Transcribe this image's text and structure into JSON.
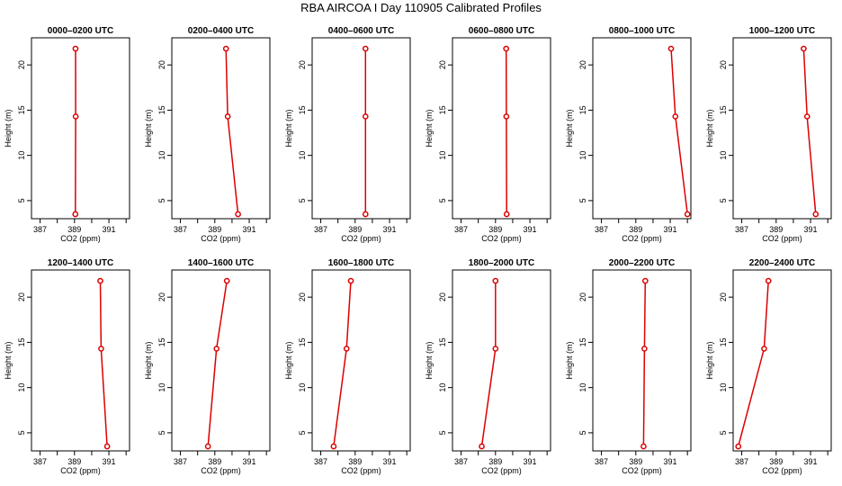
{
  "title": "RBA AIRCOA I  Day 110905  Calibrated Profiles",
  "chart_data": [
    {
      "type": "line",
      "title": "0000–0200 UTC",
      "xlabel": "CO2 (ppm)",
      "ylabel": "Height (m)",
      "xlim": [
        386.5,
        392.2
      ],
      "ylim": [
        3,
        23
      ],
      "xticks": [
        387,
        388,
        389,
        390,
        391,
        392
      ],
      "xtick_labels": [
        "387",
        "",
        "389",
        "",
        "391",
        ""
      ],
      "yticks": [
        5,
        10,
        15,
        20
      ],
      "yticklabels": [
        "5",
        "10",
        "15",
        "20"
      ],
      "series": [
        {
          "x": [
            389.05,
            389.07,
            389.06
          ],
          "y": [
            3.5,
            14.3,
            21.8
          ]
        }
      ]
    },
    {
      "type": "line",
      "title": "0200–0400 UTC",
      "xlabel": "CO2 (ppm)",
      "ylabel": "Height (m)",
      "xlim": [
        386.5,
        392.2
      ],
      "ylim": [
        3,
        23
      ],
      "xticks": [
        387,
        388,
        389,
        390,
        391,
        392
      ],
      "xtick_labels": [
        "387",
        "",
        "389",
        "",
        "391",
        ""
      ],
      "yticks": [
        5,
        10,
        15,
        20
      ],
      "yticklabels": [
        "5",
        "10",
        "15",
        "20"
      ],
      "series": [
        {
          "x": [
            390.35,
            389.75,
            389.65
          ],
          "y": [
            3.5,
            14.3,
            21.8
          ]
        }
      ]
    },
    {
      "type": "line",
      "title": "0400–0600 UTC",
      "xlabel": "CO2 (ppm)",
      "ylabel": "Height (m)",
      "xlim": [
        386.5,
        392.2
      ],
      "ylim": [
        3,
        23
      ],
      "xticks": [
        387,
        388,
        389,
        390,
        391,
        392
      ],
      "xtick_labels": [
        "387",
        "",
        "389",
        "",
        "391",
        ""
      ],
      "yticks": [
        5,
        10,
        15,
        20
      ],
      "yticklabels": [
        "5",
        "10",
        "15",
        "20"
      ],
      "series": [
        {
          "x": [
            389.6,
            389.6,
            389.6
          ],
          "y": [
            3.5,
            14.3,
            21.8
          ]
        }
      ]
    },
    {
      "type": "line",
      "title": "0600–0800 UTC",
      "xlabel": "CO2 (ppm)",
      "ylabel": "Height (m)",
      "xlim": [
        386.5,
        392.2
      ],
      "ylim": [
        3,
        23
      ],
      "xticks": [
        387,
        388,
        389,
        390,
        391,
        392
      ],
      "xtick_labels": [
        "387",
        "",
        "389",
        "",
        "391",
        ""
      ],
      "yticks": [
        5,
        10,
        15,
        20
      ],
      "yticklabels": [
        "5",
        "10",
        "15",
        "20"
      ],
      "series": [
        {
          "x": [
            389.65,
            389.63,
            389.62
          ],
          "y": [
            3.5,
            14.3,
            21.8
          ]
        }
      ]
    },
    {
      "type": "line",
      "title": "0800–1000 UTC",
      "xlabel": "CO2 (ppm)",
      "ylabel": "Height (m)",
      "xlim": [
        386.5,
        392.2
      ],
      "ylim": [
        3,
        23
      ],
      "xticks": [
        387,
        388,
        389,
        390,
        391,
        392
      ],
      "xtick_labels": [
        "387",
        "",
        "389",
        "",
        "391",
        ""
      ],
      "yticks": [
        5,
        10,
        15,
        20
      ],
      "yticklabels": [
        "5",
        "10",
        "15",
        "20"
      ],
      "series": [
        {
          "x": [
            392.0,
            391.3,
            391.05
          ],
          "y": [
            3.5,
            14.3,
            21.8
          ]
        }
      ]
    },
    {
      "type": "line",
      "title": "1000–1200 UTC",
      "xlabel": "CO2 (ppm)",
      "ylabel": "Height (m)",
      "xlim": [
        386.5,
        392.2
      ],
      "ylim": [
        3,
        23
      ],
      "xticks": [
        387,
        388,
        389,
        390,
        391,
        392
      ],
      "xtick_labels": [
        "387",
        "",
        "389",
        "",
        "391",
        ""
      ],
      "yticks": [
        5,
        10,
        15,
        20
      ],
      "yticklabels": [
        "5",
        "10",
        "15",
        "20"
      ],
      "series": [
        {
          "x": [
            391.3,
            390.8,
            390.6
          ],
          "y": [
            3.5,
            14.3,
            21.8
          ]
        }
      ]
    },
    {
      "type": "line",
      "title": "1200–1400 UTC",
      "xlabel": "CO2 (ppm)",
      "ylabel": "Height (m)",
      "xlim": [
        386.5,
        392.2
      ],
      "ylim": [
        3,
        23
      ],
      "xticks": [
        387,
        388,
        389,
        390,
        391,
        392
      ],
      "xtick_labels": [
        "387",
        "",
        "389",
        "",
        "391",
        ""
      ],
      "yticks": [
        5,
        10,
        15,
        20
      ],
      "yticklabels": [
        "5",
        "10",
        "15",
        "20"
      ],
      "series": [
        {
          "x": [
            390.9,
            390.55,
            390.5
          ],
          "y": [
            3.5,
            14.3,
            21.8
          ]
        }
      ]
    },
    {
      "type": "line",
      "title": "1400–1600 UTC",
      "xlabel": "CO2 (ppm)",
      "ylabel": "Height (m)",
      "xlim": [
        386.5,
        392.2
      ],
      "ylim": [
        3,
        23
      ],
      "xticks": [
        387,
        388,
        389,
        390,
        391,
        392
      ],
      "xtick_labels": [
        "387",
        "",
        "389",
        "",
        "391",
        ""
      ],
      "yticks": [
        5,
        10,
        15,
        20
      ],
      "yticklabels": [
        "5",
        "10",
        "15",
        "20"
      ],
      "series": [
        {
          "x": [
            388.6,
            389.1,
            389.7
          ],
          "y": [
            3.5,
            14.3,
            21.8
          ]
        }
      ]
    },
    {
      "type": "line",
      "title": "1600–1800 UTC",
      "xlabel": "CO2 (ppm)",
      "ylabel": "Height (m)",
      "xlim": [
        386.5,
        392.2
      ],
      "ylim": [
        3,
        23
      ],
      "xticks": [
        387,
        388,
        389,
        390,
        391,
        392
      ],
      "xtick_labels": [
        "387",
        "",
        "389",
        "",
        "391",
        ""
      ],
      "yticks": [
        5,
        10,
        15,
        20
      ],
      "yticklabels": [
        "5",
        "10",
        "15",
        "20"
      ],
      "series": [
        {
          "x": [
            387.75,
            388.5,
            388.75
          ],
          "y": [
            3.5,
            14.3,
            21.8
          ]
        }
      ]
    },
    {
      "type": "line",
      "title": "1800–2000 UTC",
      "xlabel": "CO2 (ppm)",
      "ylabel": "Height (m)",
      "xlim": [
        386.5,
        392.2
      ],
      "ylim": [
        3,
        23
      ],
      "xticks": [
        387,
        388,
        389,
        390,
        391,
        392
      ],
      "xtick_labels": [
        "387",
        "",
        "389",
        "",
        "391",
        ""
      ],
      "yticks": [
        5,
        10,
        15,
        20
      ],
      "yticklabels": [
        "5",
        "10",
        "15",
        "20"
      ],
      "series": [
        {
          "x": [
            388.2,
            389.0,
            389.0
          ],
          "y": [
            3.5,
            14.3,
            21.8
          ]
        }
      ]
    },
    {
      "type": "line",
      "title": "2000–2200 UTC",
      "xlabel": "CO2 (ppm)",
      "ylabel": "Height (m)",
      "xlim": [
        386.5,
        392.2
      ],
      "ylim": [
        3,
        23
      ],
      "xticks": [
        387,
        388,
        389,
        390,
        391,
        392
      ],
      "xtick_labels": [
        "387",
        "",
        "389",
        "",
        "391",
        ""
      ],
      "yticks": [
        5,
        10,
        15,
        20
      ],
      "yticklabels": [
        "5",
        "10",
        "15",
        "20"
      ],
      "series": [
        {
          "x": [
            389.45,
            389.5,
            389.55
          ],
          "y": [
            3.5,
            14.3,
            21.8
          ]
        }
      ]
    },
    {
      "type": "line",
      "title": "2200–2400 UTC",
      "xlabel": "CO2 (ppm)",
      "ylabel": "Height (m)",
      "xlim": [
        386.5,
        392.2
      ],
      "ylim": [
        3,
        23
      ],
      "xticks": [
        387,
        388,
        389,
        390,
        391,
        392
      ],
      "xtick_labels": [
        "387",
        "",
        "389",
        "",
        "391",
        ""
      ],
      "yticks": [
        5,
        10,
        15,
        20
      ],
      "yticklabels": [
        "5",
        "10",
        "15",
        "20"
      ],
      "series": [
        {
          "x": [
            386.8,
            388.3,
            388.55
          ],
          "y": [
            3.5,
            14.3,
            21.8
          ]
        }
      ]
    }
  ],
  "colors": {
    "series": "#dd0000",
    "axis": "#000000"
  }
}
